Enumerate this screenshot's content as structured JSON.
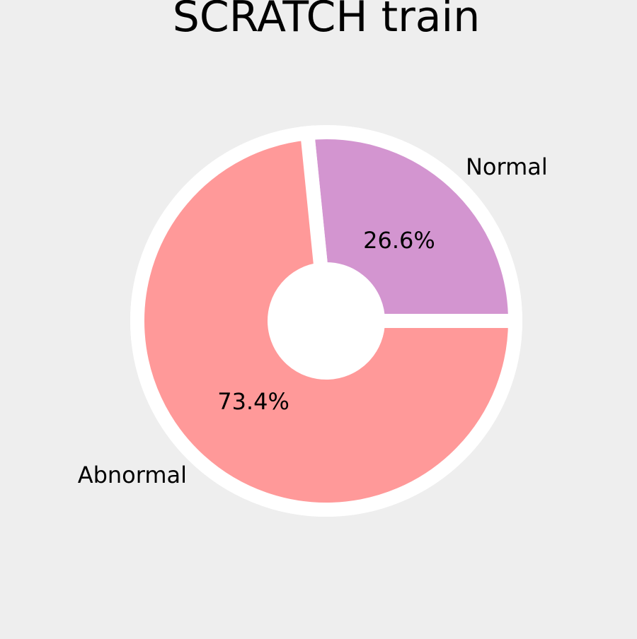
{
  "chart_data": {
    "type": "pie",
    "style": "donut",
    "title": "SCRATCH train",
    "categories": [
      "Normal",
      "Abnormal"
    ],
    "values": [
      26.6,
      73.4
    ],
    "value_labels": [
      "26.6%",
      "73.4%"
    ],
    "colors": [
      "#d395d0",
      "#ff9999"
    ],
    "edge_color": "#ffffff",
    "background": "#eeeeee",
    "start_angle_deg": 0,
    "direction": "counterclockwise",
    "legend": "none"
  }
}
